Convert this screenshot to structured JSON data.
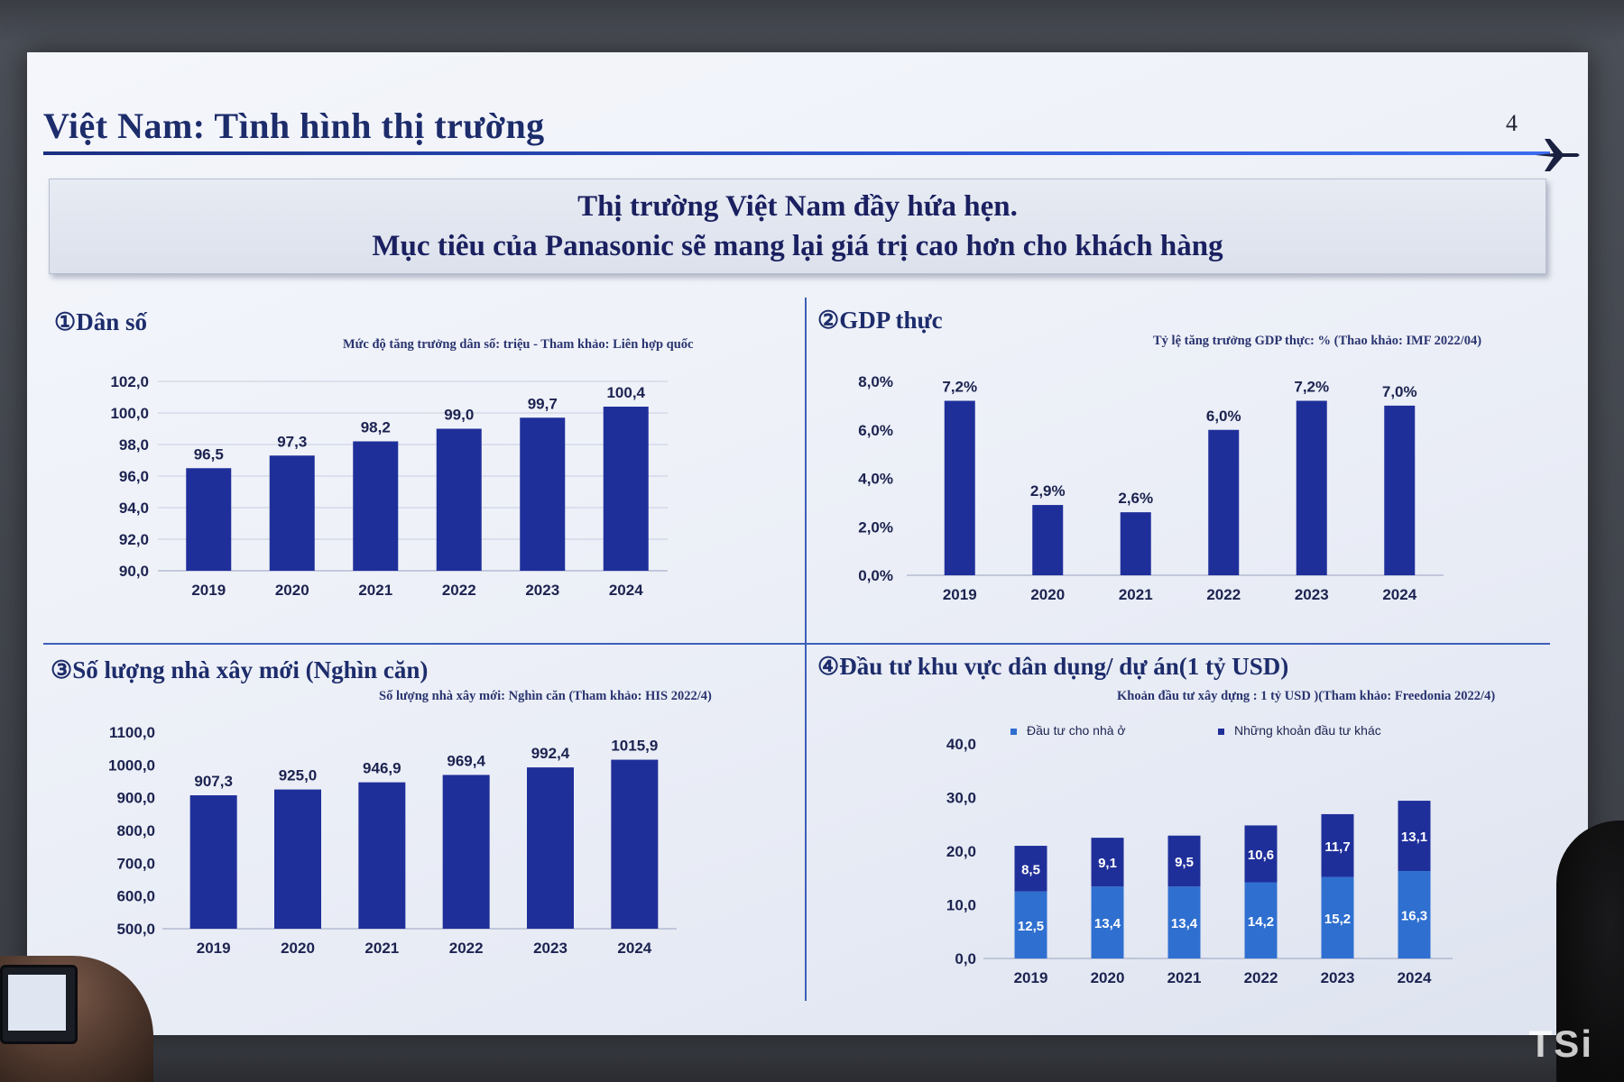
{
  "slide": {
    "title": "Việt Nam: Tình hình thị trường",
    "page_number": "4",
    "banner_line1": "Thị trường Việt Nam đầy hứa hẹn.",
    "banner_line2": "Mục tiêu của Panasonic sẽ mang lại giá trị cao hơn cho khách hàng",
    "watermark": "TSi",
    "colors": {
      "bar": "#1f2f9a",
      "bar_light": "#2f6fd0",
      "title": "#1d2c6b",
      "rule": "#2d55d6"
    }
  },
  "panels": [
    {
      "title": "①Dân số",
      "note": "Mức độ tăng trưởng dân số: triệu - Tham khảo: Liên hợp quốc"
    },
    {
      "title": "②GDP thực",
      "note": "Tỷ lệ tăng trưởng GDP thực: % (Thao khảo: IMF 2022/04)"
    },
    {
      "title": "③Số lượng nhà xây mới (Nghìn căn)",
      "note": "Số lượng nhà xây mới: Nghìn căn (Tham khảo: HIS 2022/4)"
    },
    {
      "title": "④Đầu tư khu vực dân dụng/ dự án(1 tỷ USD)",
      "note": "Khoản đầu tư xây dựng : 1 tỷ USD )(Tham khảo: Freedonia 2022/4)"
    }
  ],
  "chart_data": [
    {
      "type": "bar",
      "categories": [
        "2019",
        "2020",
        "2021",
        "2022",
        "2023",
        "2024"
      ],
      "values": [
        96.5,
        97.3,
        98.2,
        99.0,
        99.7,
        100.4
      ],
      "value_labels": [
        "96,5",
        "97,3",
        "98,2",
        "99,0",
        "99,7",
        "100,4"
      ],
      "ylim": [
        90,
        102
      ],
      "yticks": [
        "90,0",
        "92,0",
        "94,0",
        "96,0",
        "98,0",
        "100,0",
        "102,0"
      ],
      "grid": true
    },
    {
      "type": "bar",
      "categories": [
        "2019",
        "2020",
        "2021",
        "2022",
        "2023",
        "2024"
      ],
      "values": [
        7.2,
        2.9,
        2.6,
        6.0,
        7.2,
        7.0
      ],
      "value_labels": [
        "7,2%",
        "2,9%",
        "2,6%",
        "6,0%",
        "7,2%",
        "7,0%"
      ],
      "ylim": [
        0,
        8
      ],
      "yticks": [
        "0,0%",
        "2,0%",
        "4,0%",
        "6,0%",
        "8,0%"
      ],
      "grid": false
    },
    {
      "type": "bar",
      "categories": [
        "2019",
        "2020",
        "2021",
        "2022",
        "2023",
        "2024"
      ],
      "values": [
        907.3,
        925.0,
        946.9,
        969.4,
        992.4,
        1015.9
      ],
      "value_labels": [
        "907,3",
        "925,0",
        "946,9",
        "969,4",
        "992,4",
        "1015,9"
      ],
      "ylim": [
        500,
        1100
      ],
      "yticks": [
        "500,0",
        "600,0",
        "700,0",
        "800,0",
        "900,0",
        "1000,0",
        "1100,0"
      ],
      "grid": false
    },
    {
      "type": "bar",
      "stacked": true,
      "categories": [
        "2019",
        "2020",
        "2021",
        "2022",
        "2023",
        "2024"
      ],
      "series": [
        {
          "name": "Đầu tư cho nhà ở",
          "values": [
            12.5,
            13.4,
            13.4,
            14.2,
            15.2,
            16.3
          ],
          "labels": [
            "12,5",
            "13,4",
            "13,4",
            "14,2",
            "15,2",
            "16,3"
          ]
        },
        {
          "name": "Những khoản đầu tư khác",
          "values": [
            8.5,
            9.1,
            9.5,
            10.6,
            11.7,
            13.1
          ],
          "labels": [
            "8,5",
            "9,1",
            "9,5",
            "10,6",
            "11,7",
            "13,1"
          ]
        }
      ],
      "ylim": [
        0,
        40
      ],
      "yticks": [
        "0,0",
        "10,0",
        "20,0",
        "30,0",
        "40,0"
      ],
      "legend": "top",
      "grid": false
    }
  ]
}
